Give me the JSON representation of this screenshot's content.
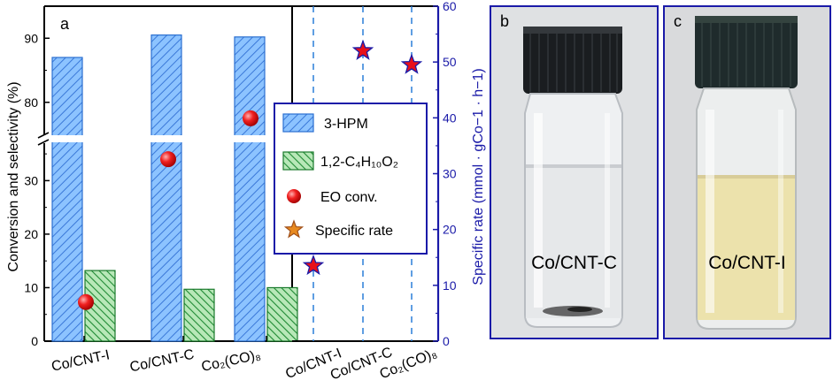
{
  "panel_a_label": "a",
  "panel_b_label": "b",
  "panel_c_label": "c",
  "photo_b_caption": "Co/CNT-C",
  "photo_c_caption": "Co/CNT-I",
  "colors": {
    "hpm": "#5b9bf0",
    "diol": "#2fa846",
    "eo_marker": "#e8101a",
    "star_fill": "#e8101a",
    "star_edge": "#1a1aa8",
    "right_axis": "#1a1aa8",
    "dash": "#2a7fd8",
    "photo_border": "#1a1aa8"
  },
  "chart_data": [
    {
      "type": "bar",
      "ylabel": "Conversion and selectivity (%)",
      "categories": [
        "Co/CNT-I",
        "Co/CNT-C",
        "Co₂(CO)₈"
      ],
      "y_break": {
        "lower": [
          0,
          37
        ],
        "upper": [
          75,
          95
        ]
      },
      "y_ticks_lower": [
        "0",
        "10",
        "20",
        "30"
      ],
      "y_ticks_upper": [
        "80",
        "90"
      ],
      "series": [
        {
          "name": "3-HPM",
          "type": "bar",
          "values": [
            87,
            90.5,
            90.2
          ]
        },
        {
          "name": "1,2-C₄H₁₀O₂",
          "type": "bar",
          "values": [
            13.2,
            9.7,
            10.0
          ]
        },
        {
          "name": "EO conv.",
          "type": "scatter",
          "values": [
            7.3,
            34,
            77.5
          ]
        }
      ]
    },
    {
      "type": "scatter",
      "ylabel": "Specific rate (mmol · gCo−1 · h−1)",
      "categories": [
        "Co/CNT-I",
        "Co/CNT-C",
        "Co₂(CO)₈"
      ],
      "ylim": [
        0,
        60
      ],
      "y_ticks": [
        "0",
        "10",
        "20",
        "30",
        "40",
        "50",
        "60"
      ],
      "series": [
        {
          "name": "Specific rate",
          "values": [
            13.5,
            52,
            49.5
          ]
        }
      ]
    }
  ],
  "legend": {
    "items": [
      {
        "label": "3-HPM"
      },
      {
        "label": "1,2-C₄H₁₀O₂"
      },
      {
        "label": "EO conv."
      },
      {
        "label": "Specific rate"
      }
    ]
  }
}
